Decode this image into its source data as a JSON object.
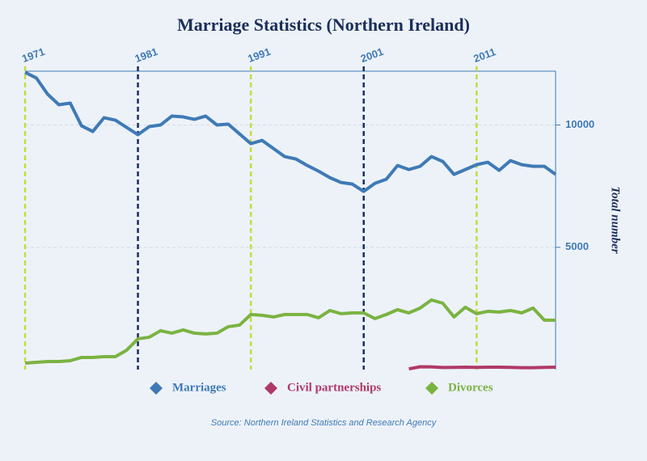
{
  "chart_data": {
    "type": "line",
    "title": "Marriage Statistics (Northern Ireland)",
    "y_label": "Total number",
    "source": "Source: Northern Ireland Statistics and Research Agency",
    "x": [
      1971,
      1972,
      1973,
      1974,
      1975,
      1976,
      1977,
      1978,
      1979,
      1980,
      1981,
      1982,
      1983,
      1984,
      1985,
      1986,
      1987,
      1988,
      1989,
      1990,
      1991,
      1992,
      1993,
      1994,
      1995,
      1996,
      1997,
      1998,
      1999,
      2000,
      2001,
      2002,
      2003,
      2004,
      2005,
      2006,
      2007,
      2008,
      2009,
      2010,
      2011,
      2012,
      2013,
      2014,
      2015,
      2016,
      2017,
      2018
    ],
    "xlim": [
      1971,
      2018
    ],
    "xticks": [
      1971,
      1981,
      1991,
      2001,
      2011
    ],
    "xtick_colors": [
      "#c5dc3c",
      "#1b2f5a",
      "#c5dc3c",
      "#1b2f5a",
      "#c5dc3c"
    ],
    "ylim": [
      0,
      12200
    ],
    "yticks": [
      5000,
      10000
    ],
    "grid": true,
    "legend": "bottom",
    "series": [
      {
        "name": "Marriages",
        "color": "#3f7ab5",
        "values": [
          12152,
          11920,
          11258,
          10828,
          10894,
          9967,
          9735,
          10298,
          10199,
          9901,
          9603,
          9934,
          10000,
          10364,
          10331,
          10232,
          10364,
          10000,
          10033,
          9636,
          9238,
          9371,
          9040,
          8709,
          8609,
          8344,
          8113,
          7848,
          7649,
          7583,
          7285,
          7616,
          7781,
          8344,
          8179,
          8311,
          8709,
          8510,
          7980,
          8179,
          8377,
          8477,
          8146,
          8543,
          8377,
          8311,
          8311,
          7980
        ]
      },
      {
        "name": "Civil partnerships",
        "color": "#b03a67",
        "values": [
          null,
          null,
          null,
          null,
          null,
          null,
          null,
          null,
          null,
          null,
          null,
          null,
          null,
          null,
          null,
          null,
          null,
          null,
          null,
          null,
          null,
          null,
          null,
          null,
          null,
          null,
          null,
          null,
          null,
          null,
          null,
          null,
          null,
          null,
          30,
          116,
          110,
          86,
          90,
          100,
          90,
          100,
          100,
          90,
          80,
          80,
          90,
          100
        ]
      },
      {
        "name": "Divorces",
        "color": "#7bb342",
        "values": [
          265,
          298,
          331,
          331,
          364,
          497,
          497,
          530,
          530,
          795,
          1258,
          1325,
          1589,
          1490,
          1623,
          1490,
          1457,
          1490,
          1755,
          1821,
          2252,
          2219,
          2152,
          2252,
          2252,
          2252,
          2119,
          2417,
          2285,
          2318,
          2318,
          2086,
          2252,
          2450,
          2318,
          2517,
          2848,
          2715,
          2152,
          2550,
          2285,
          2384,
          2351,
          2417,
          2318,
          2517,
          2020,
          2020
        ]
      }
    ]
  }
}
